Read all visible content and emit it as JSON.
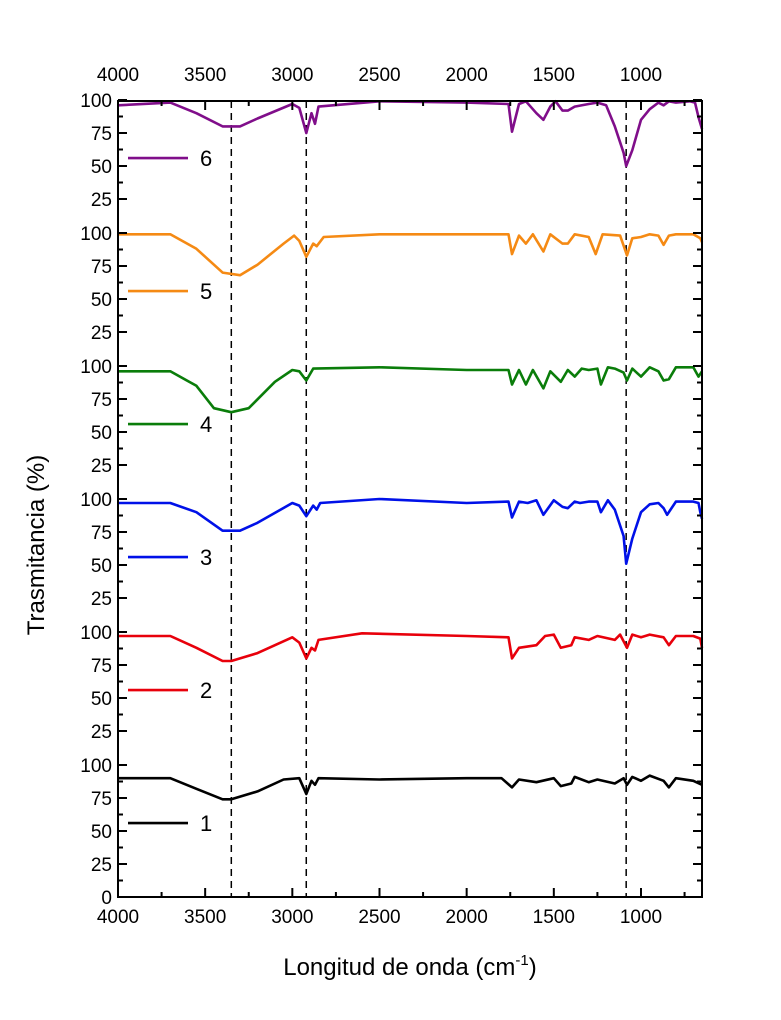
{
  "chart_data": {
    "type": "line",
    "title": "",
    "xlabel": "Longitud de onda (cm",
    "xlabel_sup": "-1",
    "xlabel_end": ")",
    "ylabel": "Trasmitancia (%)",
    "xlim": [
      4000,
      650
    ],
    "x_reversed": true,
    "ylim_per_panel": [
      0,
      100
    ],
    "stacked_panels": 6,
    "x_ticks": [
      "4000",
      "3500",
      "3000",
      "2500",
      "2000",
      "1500",
      "1000"
    ],
    "x_tick_values": [
      4000,
      3500,
      3000,
      2500,
      2000,
      1500,
      1000
    ],
    "y_ticks": [
      "0",
      "25",
      "50",
      "75",
      "100"
    ],
    "y_tick_values": [
      0,
      25,
      50,
      75,
      100
    ],
    "reference_lines_x": [
      3350,
      2920,
      1085
    ],
    "grid": false,
    "legend_placement": "left, one entry per panel",
    "series": [
      {
        "name": "1",
        "color": "#000000",
        "points": [
          [
            4000,
            90
          ],
          [
            3700,
            90
          ],
          [
            3550,
            82
          ],
          [
            3400,
            74
          ],
          [
            3350,
            74
          ],
          [
            3200,
            80
          ],
          [
            3050,
            89
          ],
          [
            2960,
            90
          ],
          [
            2920,
            78
          ],
          [
            2890,
            88
          ],
          [
            2870,
            85
          ],
          [
            2850,
            90
          ],
          [
            2500,
            89
          ],
          [
            2000,
            90
          ],
          [
            1800,
            90
          ],
          [
            1740,
            83
          ],
          [
            1700,
            89
          ],
          [
            1600,
            87
          ],
          [
            1500,
            90
          ],
          [
            1460,
            84
          ],
          [
            1400,
            86
          ],
          [
            1380,
            91
          ],
          [
            1300,
            87
          ],
          [
            1250,
            89
          ],
          [
            1150,
            86
          ],
          [
            1100,
            90
          ],
          [
            1080,
            85
          ],
          [
            1050,
            91
          ],
          [
            1000,
            88
          ],
          [
            950,
            92
          ],
          [
            870,
            88
          ],
          [
            840,
            83
          ],
          [
            800,
            90
          ],
          [
            700,
            88
          ],
          [
            650,
            85
          ]
        ]
      },
      {
        "name": "2",
        "color": "#e8000b",
        "points": [
          [
            4000,
            97
          ],
          [
            3700,
            97
          ],
          [
            3550,
            88
          ],
          [
            3400,
            78
          ],
          [
            3350,
            78
          ],
          [
            3200,
            84
          ],
          [
            3000,
            96
          ],
          [
            2960,
            92
          ],
          [
            2920,
            80
          ],
          [
            2890,
            88
          ],
          [
            2870,
            86
          ],
          [
            2850,
            94
          ],
          [
            2600,
            99
          ],
          [
            2000,
            97
          ],
          [
            1760,
            96
          ],
          [
            1740,
            80
          ],
          [
            1700,
            88
          ],
          [
            1600,
            90
          ],
          [
            1550,
            97
          ],
          [
            1500,
            98
          ],
          [
            1460,
            88
          ],
          [
            1400,
            90
          ],
          [
            1380,
            96
          ],
          [
            1300,
            94
          ],
          [
            1250,
            97
          ],
          [
            1150,
            94
          ],
          [
            1120,
            98
          ],
          [
            1080,
            88
          ],
          [
            1050,
            98
          ],
          [
            1000,
            96
          ],
          [
            950,
            98
          ],
          [
            870,
            96
          ],
          [
            840,
            90
          ],
          [
            800,
            97
          ],
          [
            700,
            97
          ],
          [
            660,
            95
          ],
          [
            650,
            88
          ]
        ]
      },
      {
        "name": "3",
        "color": "#0011e8",
        "points": [
          [
            4000,
            97
          ],
          [
            3700,
            97
          ],
          [
            3550,
            90
          ],
          [
            3400,
            76
          ],
          [
            3300,
            76
          ],
          [
            3200,
            82
          ],
          [
            3000,
            97
          ],
          [
            2960,
            95
          ],
          [
            2920,
            87
          ],
          [
            2880,
            95
          ],
          [
            2860,
            92
          ],
          [
            2840,
            97
          ],
          [
            2500,
            100
          ],
          [
            2000,
            97
          ],
          [
            1760,
            98
          ],
          [
            1740,
            86
          ],
          [
            1700,
            98
          ],
          [
            1650,
            97
          ],
          [
            1600,
            99
          ],
          [
            1560,
            88
          ],
          [
            1500,
            99
          ],
          [
            1450,
            94
          ],
          [
            1420,
            93
          ],
          [
            1380,
            98
          ],
          [
            1350,
            97
          ],
          [
            1300,
            98
          ],
          [
            1250,
            98
          ],
          [
            1230,
            90
          ],
          [
            1190,
            99
          ],
          [
            1150,
            92
          ],
          [
            1100,
            72
          ],
          [
            1085,
            51
          ],
          [
            1050,
            70
          ],
          [
            1000,
            90
          ],
          [
            950,
            96
          ],
          [
            900,
            97
          ],
          [
            870,
            93
          ],
          [
            850,
            88
          ],
          [
            800,
            98
          ],
          [
            700,
            98
          ],
          [
            670,
            97
          ],
          [
            660,
            90
          ],
          [
            650,
            85
          ]
        ]
      },
      {
        "name": "4",
        "color": "#0a7d0a",
        "points": [
          [
            4000,
            96
          ],
          [
            3700,
            96
          ],
          [
            3550,
            85
          ],
          [
            3450,
            68
          ],
          [
            3350,
            65
          ],
          [
            3250,
            68
          ],
          [
            3100,
            88
          ],
          [
            3000,
            97
          ],
          [
            2960,
            96
          ],
          [
            2920,
            89
          ],
          [
            2880,
            98
          ],
          [
            2500,
            99
          ],
          [
            2000,
            97
          ],
          [
            1760,
            97
          ],
          [
            1740,
            86
          ],
          [
            1700,
            97
          ],
          [
            1660,
            86
          ],
          [
            1620,
            97
          ],
          [
            1560,
            83
          ],
          [
            1520,
            96
          ],
          [
            1460,
            88
          ],
          [
            1420,
            97
          ],
          [
            1380,
            92
          ],
          [
            1340,
            98
          ],
          [
            1300,
            97
          ],
          [
            1250,
            98
          ],
          [
            1230,
            86
          ],
          [
            1190,
            99
          ],
          [
            1150,
            98
          ],
          [
            1100,
            95
          ],
          [
            1080,
            89
          ],
          [
            1050,
            98
          ],
          [
            1000,
            92
          ],
          [
            950,
            99
          ],
          [
            900,
            96
          ],
          [
            870,
            89
          ],
          [
            840,
            90
          ],
          [
            800,
            99
          ],
          [
            700,
            99
          ],
          [
            670,
            92
          ],
          [
            650,
            96
          ]
        ]
      },
      {
        "name": "5",
        "color": "#f58a14",
        "points": [
          [
            4000,
            99
          ],
          [
            3700,
            99
          ],
          [
            3550,
            88
          ],
          [
            3400,
            70
          ],
          [
            3300,
            68
          ],
          [
            3200,
            76
          ],
          [
            3050,
            92
          ],
          [
            2990,
            98
          ],
          [
            2960,
            94
          ],
          [
            2920,
            82
          ],
          [
            2880,
            92
          ],
          [
            2860,
            90
          ],
          [
            2820,
            97
          ],
          [
            2500,
            99
          ],
          [
            2000,
            99
          ],
          [
            1760,
            99
          ],
          [
            1740,
            84
          ],
          [
            1700,
            98
          ],
          [
            1660,
            92
          ],
          [
            1620,
            99
          ],
          [
            1560,
            86
          ],
          [
            1520,
            99
          ],
          [
            1450,
            92
          ],
          [
            1420,
            92
          ],
          [
            1380,
            99
          ],
          [
            1300,
            97
          ],
          [
            1260,
            84
          ],
          [
            1220,
            99
          ],
          [
            1120,
            98
          ],
          [
            1080,
            83
          ],
          [
            1050,
            96
          ],
          [
            1000,
            97
          ],
          [
            950,
            99
          ],
          [
            900,
            98
          ],
          [
            870,
            91
          ],
          [
            840,
            98
          ],
          [
            800,
            99
          ],
          [
            700,
            99
          ],
          [
            660,
            96
          ],
          [
            650,
            93
          ]
        ]
      },
      {
        "name": "6",
        "color": "#800e8a",
        "points": [
          [
            4000,
            96
          ],
          [
            3700,
            98
          ],
          [
            3550,
            90
          ],
          [
            3400,
            80
          ],
          [
            3300,
            80
          ],
          [
            3200,
            86
          ],
          [
            3000,
            97
          ],
          [
            2960,
            94
          ],
          [
            2920,
            75
          ],
          [
            2890,
            90
          ],
          [
            2870,
            82
          ],
          [
            2850,
            95
          ],
          [
            2500,
            99
          ],
          [
            2000,
            98
          ],
          [
            1760,
            97
          ],
          [
            1740,
            76
          ],
          [
            1700,
            97
          ],
          [
            1660,
            99
          ],
          [
            1600,
            90
          ],
          [
            1560,
            85
          ],
          [
            1520,
            95
          ],
          [
            1490,
            99
          ],
          [
            1450,
            92
          ],
          [
            1420,
            92
          ],
          [
            1380,
            95
          ],
          [
            1300,
            97
          ],
          [
            1250,
            98
          ],
          [
            1200,
            96
          ],
          [
            1150,
            80
          ],
          [
            1100,
            60
          ],
          [
            1085,
            50
          ],
          [
            1050,
            62
          ],
          [
            1000,
            85
          ],
          [
            950,
            93
          ],
          [
            900,
            98
          ],
          [
            870,
            96
          ],
          [
            840,
            99
          ],
          [
            800,
            98
          ],
          [
            720,
            99
          ],
          [
            690,
            98
          ],
          [
            670,
            87
          ],
          [
            650,
            78
          ]
        ]
      }
    ]
  }
}
